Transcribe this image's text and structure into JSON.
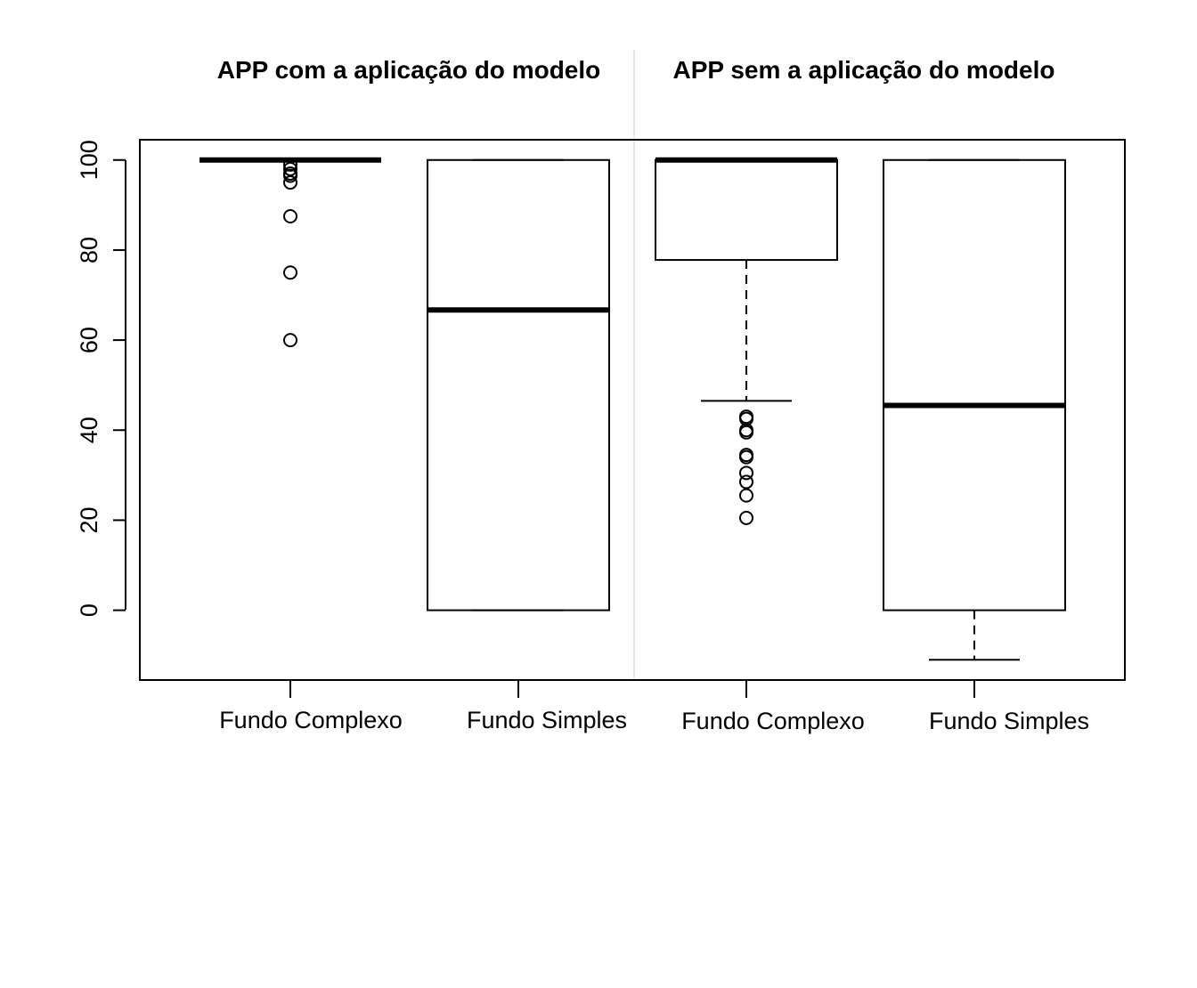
{
  "chart_data": {
    "type": "box",
    "panels": [
      {
        "title": "APP com a aplicação do modelo",
        "categories": [
          "Fundo Complexo",
          "Fundo Simples"
        ]
      },
      {
        "title": "APP sem a aplicação do modelo",
        "categories": [
          "Fundo Complexo",
          "Fundo Simples"
        ]
      }
    ],
    "boxes": [
      {
        "panel": 0,
        "category": "Fundo Complexo",
        "whisker_low": 100,
        "q1": 100,
        "median": 100,
        "q3": 100,
        "whisker_high": 100,
        "outliers": [
          99,
          98,
          97,
          96.5,
          95,
          87.5,
          75,
          60
        ]
      },
      {
        "panel": 0,
        "category": "Fundo Simples",
        "whisker_low": 0,
        "q1": 0,
        "median": 66.7,
        "q3": 100,
        "whisker_high": 100,
        "outliers": []
      },
      {
        "panel": 1,
        "category": "Fundo Complexo",
        "whisker_low": 46.5,
        "q1": 77.8,
        "median": 100,
        "q3": 100,
        "whisker_high": 100,
        "outliers": [
          43,
          42.5,
          40,
          39.5,
          34.5,
          34,
          30.5,
          28.5,
          25.5,
          20.5
        ]
      },
      {
        "panel": 1,
        "category": "Fundo Simples",
        "whisker_low": -11,
        "q1": 0,
        "median": 45.5,
        "q3": 100,
        "whisker_high": 100,
        "outliers": []
      }
    ],
    "y_ticks": [
      0,
      20,
      40,
      60,
      80,
      100
    ],
    "ylim": [
      -15.5,
      104.5
    ],
    "grid": false,
    "legend": "none"
  }
}
